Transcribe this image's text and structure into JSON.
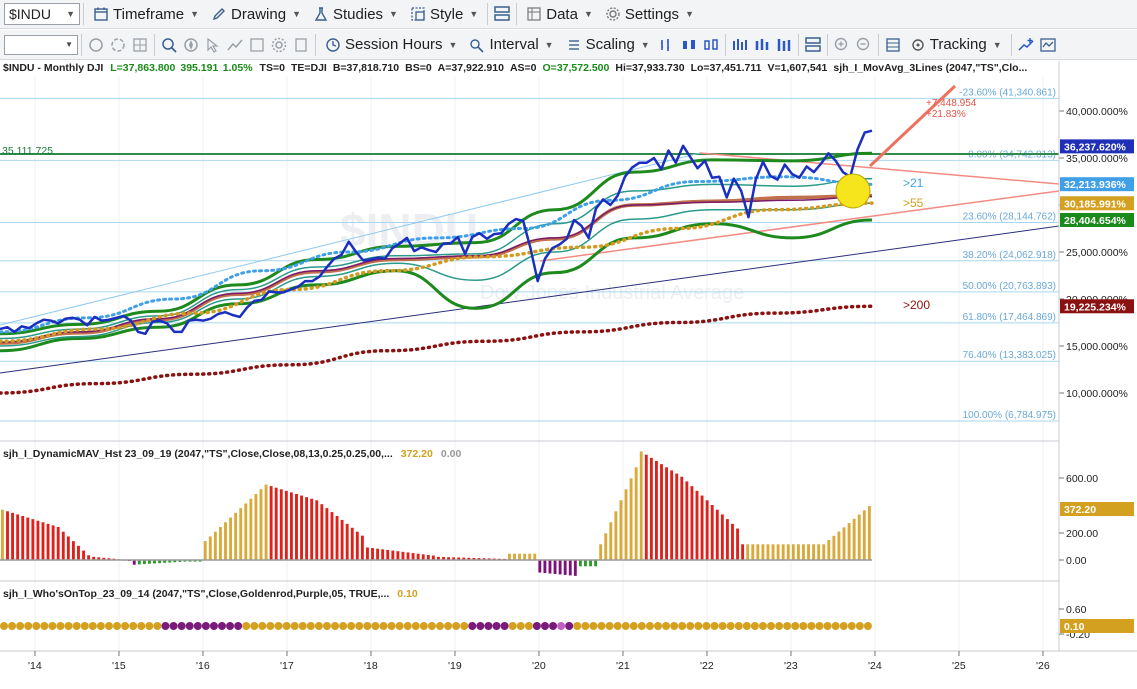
{
  "toolbar1": {
    "symbol": "$INDU",
    "timeframe": "Timeframe",
    "drawing": "Drawing",
    "studies": "Studies",
    "style": "Style",
    "data": "Data",
    "settings": "Settings"
  },
  "toolbar2": {
    "session_hours": "Session Hours",
    "interval": "Interval",
    "scaling": "Scaling",
    "tracking": "Tracking"
  },
  "header": {
    "symbol_desc": "$INDU - Monthly  DJI",
    "last": "L=37,863.800",
    "change": "395.191",
    "change_pct": "1.05%",
    "ts": "TS=0",
    "te": "TE=DJI",
    "bid": "B=37,818.710",
    "bs": "BS=0",
    "ask": "A=37,922.910",
    "as": "AS=0",
    "open": "O=37,572.500",
    "high": "Hi=37,933.730",
    "low": "Lo=37,451.711",
    "volume": "V=1,607,541",
    "study": "sjh_I_MovAvg_3Lines (2047,\"TS\",Clo..."
  },
  "price_pane": {
    "left_level": "35,111.725",
    "target_change": "+7,448.954",
    "target_pct": "+21.83%",
    "ma_labels": {
      "ma21": ">21",
      "ma55": ">55",
      "ma200": ">200"
    },
    "fib_levels": [
      {
        "label": "-23.60% (41,340.861)",
        "value": 41340.861
      },
      {
        "label": "0.00% (34,742.813)",
        "value": 34742.813
      },
      {
        "label": "23.60% (28,144.762)",
        "value": 28144.762
      },
      {
        "label": "38.20% (24,062.918)",
        "value": 24062.918
      },
      {
        "label": "50.00% (20,763.893)",
        "value": 20763.893
      },
      {
        "label": "61.80% (17,464.869)",
        "value": 17464.869
      },
      {
        "label": "76.40% (13,383.025)",
        "value": 13383.025
      },
      {
        "label": "100.00% (6,784.975)",
        "value": 6784.975
      }
    ],
    "axis_ticks": [
      "40,000.000%",
      "35,000.000%",
      "30,000.000%",
      "25,000.000%",
      "20,000.000%",
      "15,000.000%",
      "10,000.000%"
    ],
    "badges": [
      {
        "text": "36,237.620%",
        "value": 36237.62,
        "color": "#1f2fb8"
      },
      {
        "text": "32,213.936%",
        "value": 32213.936,
        "color": "#3fa0e8"
      },
      {
        "text": "30,185.991%",
        "value": 30185.991,
        "color": "#d4a020"
      },
      {
        "text": "28,404.654%",
        "value": 28404.654,
        "color": "#1a8a1a"
      },
      {
        "text": "19,225.234%",
        "value": 19225.234,
        "color": "#8b1010"
      }
    ],
    "watermark": "$INDU",
    "watermark_sub": "Dow Jones Industrial Average"
  },
  "histogram_pane": {
    "title": "sjh_I_DynamicMAV_Hst 23_09_19 (2047,\"TS\",Close,Close,08,13,0.25,0.25,00,...",
    "value": "372.20",
    "value2": "0.00",
    "axis_ticks": [
      "600.00",
      "200.00",
      "0.00"
    ],
    "badge": "372.20"
  },
  "dots_pane": {
    "title": "sjh_I_Who'sOnTop_23_09_14 (2047,\"TS\",Close,Goldenrod,Purple,05,  TRUE,...",
    "value": "0.10",
    "axis_ticks": [
      "0.60",
      "-0.20"
    ],
    "badge": "0.10"
  },
  "time_axis": [
    "'14",
    "'15",
    "'16",
    "'17",
    "'18",
    "'19",
    "'20",
    "'21",
    "'22",
    "'23",
    "'24",
    "'25",
    "'26"
  ],
  "chart_data": {
    "type": "line",
    "price_series_monthly_close": [
      16800,
      17000,
      16500,
      17100,
      16900,
      17400,
      17800,
      17700,
      17400,
      17900,
      18000,
      17800,
      17200,
      18100,
      17700,
      17800,
      18000,
      18200,
      17700,
      16500,
      16300,
      17600,
      17700,
      17400,
      16500,
      16500,
      17700,
      17800,
      17700,
      17900,
      18400,
      18600,
      18300,
      18100,
      19100,
      19800,
      19900,
      20800,
      20700,
      20700,
      21000,
      21300,
      21900,
      21900,
      22400,
      23400,
      24300,
      24700,
      26100,
      25000,
      24100,
      24200,
      24400,
      24300,
      25400,
      25900,
      26500,
      25100,
      25500,
      25200,
      25000,
      25900,
      25900,
      26600,
      24800,
      26600,
      27000,
      26400,
      26900,
      27000,
      28000,
      28500,
      28300,
      25400,
      21900,
      24300,
      25400,
      25800,
      26400,
      28400,
      27800,
      26500,
      29600,
      30600,
      30000,
      31000,
      33000,
      34000,
      34500,
      34500,
      35000,
      33800,
      35800,
      34500,
      36300,
      35100,
      33900,
      34700,
      32900,
      33000,
      30800,
      32800,
      31500,
      28700,
      32700,
      34600,
      33100,
      32700,
      34300,
      33300,
      32900,
      34100,
      33500,
      34400,
      35500,
      34700,
      33500,
      33000,
      35900,
      37700,
      37900
    ],
    "ma21_approx": [
      16500,
      18000,
      20000,
      23000,
      25000,
      26500,
      27500,
      30500,
      32500,
      33000,
      32200
    ],
    "ma55_approx": [
      15500,
      16800,
      18500,
      21000,
      23000,
      24500,
      25500,
      27500,
      29500,
      30200
    ],
    "ma200_approx": [
      10000,
      11000,
      12000,
      13000,
      14500,
      15500,
      16500,
      17500,
      18500,
      19225
    ],
    "histogram_values_recent": [
      150,
      200,
      250,
      350,
      450,
      600,
      700,
      650,
      600,
      500,
      400,
      300,
      200,
      150,
      100,
      100,
      100,
      100,
      100,
      100,
      100,
      120,
      150,
      200,
      250,
      372.2
    ]
  }
}
